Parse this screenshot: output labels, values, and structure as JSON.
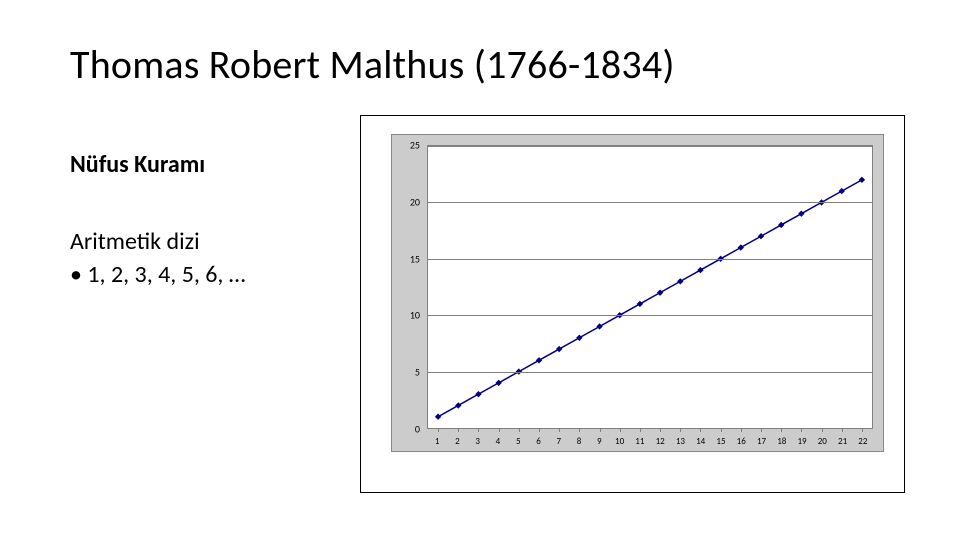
{
  "title": "Thomas Robert Malthus (1766-1834)",
  "subtitle": "Nüfus Kuramı",
  "series_label": "Aritmetik dizi",
  "series_example": "• 1, 2, 3, 4, 5, 6,  …",
  "chart": {
    "type": "line",
    "x_values": [
      1,
      2,
      3,
      4,
      5,
      6,
      7,
      8,
      9,
      10,
      11,
      12,
      13,
      14,
      15,
      16,
      17,
      18,
      19,
      20,
      21,
      22
    ],
    "y_values": [
      1,
      2,
      3,
      4,
      5,
      6,
      7,
      8,
      9,
      10,
      11,
      12,
      13,
      14,
      15,
      16,
      17,
      18,
      19,
      20,
      21,
      22
    ],
    "x_ticks": [
      1,
      2,
      3,
      4,
      5,
      6,
      7,
      8,
      9,
      10,
      11,
      12,
      13,
      14,
      15,
      16,
      17,
      18,
      19,
      20,
      21,
      22
    ],
    "y_ticks": [
      0,
      5,
      10,
      15,
      20,
      25
    ],
    "ylim": [
      0,
      25
    ],
    "xlim": [
      0.5,
      22.5
    ],
    "line_color": "#000080",
    "marker_color": "#000080",
    "marker_shape": "diamond",
    "marker_size": 5,
    "line_width": 1.5,
    "plot_bg": "#ffffff",
    "panel_bg": "#cccccc",
    "grid_color": "#808080",
    "tick_fontsize": 10,
    "outer_border_color": "#000000"
  }
}
